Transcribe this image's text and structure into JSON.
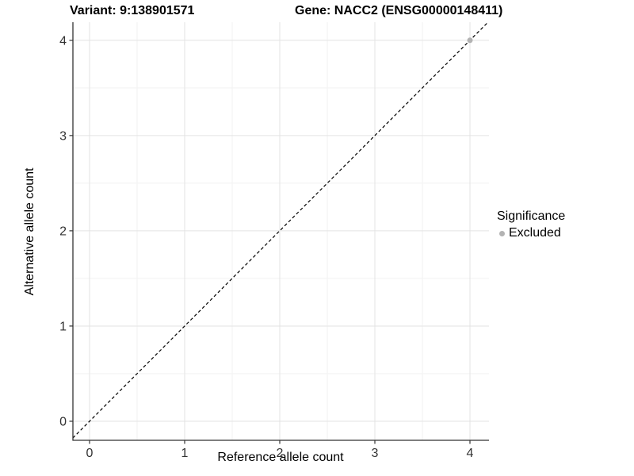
{
  "titles": {
    "left": "Variant: 9:138901571",
    "right": "Gene: NACC2 (ENSG00000148411)"
  },
  "chart_data": {
    "type": "scatter",
    "title": "Variant: 9:138901571 — Gene: NACC2 (ENSG00000148411)",
    "xlabel": "Reference allele count",
    "ylabel": "Alternative allele count",
    "xlim": [
      -0.175,
      4.2
    ],
    "ylim": [
      -0.2,
      4.19
    ],
    "x_ticks": [
      0,
      1,
      2,
      3,
      4
    ],
    "y_ticks": [
      0,
      1,
      2,
      3,
      4
    ],
    "minor_grid_step": 0.5,
    "grid": true,
    "identity_line": {
      "style": "dashed",
      "color": "#000000",
      "from": -0.3,
      "to": 4.3
    },
    "series": [
      {
        "name": "Excluded",
        "color": "#b3b3b3",
        "points": [
          {
            "x": 4,
            "y": 4
          }
        ]
      }
    ],
    "legend": {
      "title": "Significance",
      "position": "right",
      "entries": [
        {
          "label": "Excluded",
          "color": "#b3b3b3"
        }
      ]
    }
  },
  "colors": {
    "background": "#ffffff",
    "axis_line": "#333333",
    "tick_mark": "#333333",
    "tick_text": "#333333",
    "grid_major": "#e3e3e3",
    "grid_minor": "#f2f2f2",
    "identity_line": "#000000",
    "point": "#b3b3b3",
    "text": "#000000"
  }
}
